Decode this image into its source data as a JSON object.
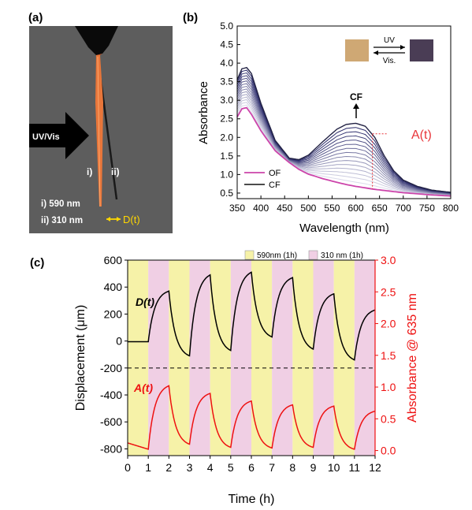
{
  "panel_labels": {
    "a": "(a)",
    "b": "(b)",
    "c": "(c)"
  },
  "photo": {
    "arrow_label": "UV/Vis",
    "fiber_i": "i)",
    "fiber_ii": "ii)",
    "line1": "i) 590 nm",
    "line2": "ii) 310 nm",
    "dt_label": "D(t)",
    "colors": {
      "background": "#5d5d5d",
      "fiber": "#e8763a",
      "holder": "#000000",
      "annotation": "#ffd700"
    }
  },
  "chart_data": [
    {
      "type": "line",
      "panel": "(b)",
      "xlabel": "Wavelength (nm)",
      "ylabel": "Absorbance",
      "xlim": [
        350,
        800
      ],
      "ylim": [
        0.35,
        5.0
      ],
      "xticks": [
        350,
        400,
        450,
        500,
        550,
        600,
        650,
        700,
        750,
        800
      ],
      "yticks": [
        0.5,
        1.0,
        1.5,
        2.0,
        2.5,
        3.0,
        3.5,
        4.0,
        4.5,
        5.0
      ],
      "grid": false,
      "legend_position": "bottom-left",
      "legend": [
        {
          "label": "OF",
          "color": "#cc44aa"
        },
        {
          "label": "CF",
          "color": "#333333"
        }
      ],
      "series_profile": {
        "x": [
          350,
          360,
          370,
          380,
          400,
          430,
          460,
          480,
          500,
          530,
          560,
          580,
          600,
          620,
          640,
          660,
          680,
          700,
          730,
          760,
          800
        ],
        "OF": [
          2.55,
          2.77,
          2.8,
          2.62,
          2.18,
          1.64,
          1.32,
          1.14,
          1.01,
          0.89,
          0.79,
          0.73,
          0.68,
          0.64,
          0.6,
          0.57,
          0.54,
          0.51,
          0.48,
          0.45,
          0.42
        ],
        "CF": [
          3.55,
          3.85,
          3.88,
          3.72,
          2.92,
          1.92,
          1.44,
          1.4,
          1.52,
          1.88,
          2.22,
          2.35,
          2.38,
          2.3,
          2.0,
          1.5,
          1.1,
          0.85,
          0.68,
          0.58,
          0.52
        ]
      },
      "n_intermediate": 14,
      "intermediate_color_range": [
        "#e8e8f4",
        "#1a1a5e"
      ],
      "annotations": {
        "cf_peak": "CF",
        "a_t": "A(t)",
        "uv": "UV",
        "vis": "Vis."
      },
      "annotation_color": "#e8353a",
      "inset_swatches": [
        "#cfa874",
        "#4a3d55"
      ]
    },
    {
      "type": "line",
      "panel": "(c)",
      "xlabel": "Time (h)",
      "ylabel": "Displacement (μm)",
      "ylabel_right": "Absorbance @ 635 nm",
      "xlim": [
        0,
        12
      ],
      "ylim": [
        -850,
        600
      ],
      "ylim_right": [
        -0.08,
        3.0
      ],
      "xticks": [
        0,
        1,
        2,
        3,
        4,
        5,
        6,
        7,
        8,
        9,
        10,
        11,
        12
      ],
      "yticks": [
        600,
        400,
        200,
        0,
        -200,
        -400,
        -600,
        -800
      ],
      "yticks_right": [
        3.0,
        2.5,
        2.0,
        1.5,
        1.0,
        0.5,
        0.0
      ],
      "threshold_line": -200,
      "grid": false,
      "legend_position": "top-right",
      "legend": [
        {
          "label": "590nm (1h)",
          "color": "#f6f2a8"
        },
        {
          "label": "310 nm (1h)",
          "color": "#f0cfe4"
        }
      ],
      "bands": [
        {
          "start": 0,
          "end": 1,
          "kind": "590"
        },
        {
          "start": 1,
          "end": 2,
          "kind": "310"
        },
        {
          "start": 2,
          "end": 3,
          "kind": "590"
        },
        {
          "start": 3,
          "end": 4,
          "kind": "310"
        },
        {
          "start": 4,
          "end": 5,
          "kind": "590"
        },
        {
          "start": 5,
          "end": 6,
          "kind": "310"
        },
        {
          "start": 6,
          "end": 7,
          "kind": "590"
        },
        {
          "start": 7,
          "end": 8,
          "kind": "310"
        },
        {
          "start": 8,
          "end": 9,
          "kind": "590"
        },
        {
          "start": 9,
          "end": 10,
          "kind": "310"
        },
        {
          "start": 10,
          "end": 11,
          "kind": "590"
        },
        {
          "start": 11,
          "end": 12,
          "kind": "310"
        }
      ],
      "series": [
        {
          "name": "D(t)",
          "color": "#000000",
          "axis": "left",
          "start": [
            0,
            -5
          ],
          "segments": [
            [
              0,
              1,
              -5,
              "flat"
            ],
            [
              1,
              2,
              370,
              "rise"
            ],
            [
              2,
              3,
              -110,
              "fall"
            ],
            [
              3,
              4,
              490,
              "rise"
            ],
            [
              4,
              5,
              -70,
              "fall"
            ],
            [
              5,
              6,
              510,
              "rise"
            ],
            [
              6,
              7,
              30,
              "fall"
            ],
            [
              7,
              8,
              470,
              "rise"
            ],
            [
              8,
              9,
              -60,
              "fall"
            ],
            [
              9,
              10,
              350,
              "rise"
            ],
            [
              10,
              11,
              -140,
              "fall"
            ],
            [
              11,
              12,
              230,
              "rise"
            ]
          ]
        },
        {
          "name": "A(t)",
          "color": "#ee1111",
          "axis": "right",
          "start": [
            0,
            0.12
          ],
          "segments": [
            [
              0,
              1,
              0.02,
              "flat"
            ],
            [
              1,
              2,
              1.02,
              "rise"
            ],
            [
              2,
              3,
              0.1,
              "fall"
            ],
            [
              3,
              4,
              0.9,
              "rise"
            ],
            [
              4,
              5,
              0.05,
              "fall"
            ],
            [
              5,
              6,
              0.78,
              "rise"
            ],
            [
              6,
              7,
              0.04,
              "fall"
            ],
            [
              7,
              8,
              0.72,
              "rise"
            ],
            [
              8,
              9,
              0.05,
              "fall"
            ],
            [
              9,
              10,
              0.7,
              "rise"
            ],
            [
              10,
              11,
              0.02,
              "fall"
            ],
            [
              11,
              12,
              0.62,
              "rise"
            ]
          ]
        }
      ]
    }
  ]
}
